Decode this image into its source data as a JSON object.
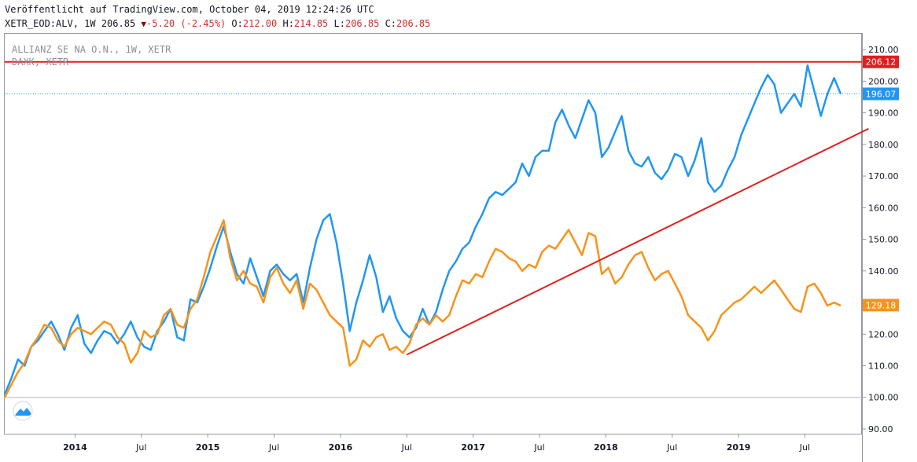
{
  "header": {
    "published": "Veröffentlicht auf TradingView.com, October 04, 2019 12:24:26 UTC",
    "symbol": "XETR_EOD:ALV, 1W 206.85",
    "change": "-5.20 (-2.45%)",
    "o_label": "O:",
    "o_val": "212.00",
    "h_label": "H:",
    "h_val": "214.85",
    "l_label": "L:",
    "l_val": "206.85",
    "c_label": "C:",
    "c_val": "206.85"
  },
  "legend": {
    "main": "ALLIANZ SE NA O.N., 1W, XETR",
    "compare": "DAXK, XETR"
  },
  "colors": {
    "allianz": "#2196f3",
    "daxk": "#f7931a",
    "trendline": "#e31e1e",
    "hline": "#e31e1e",
    "dotted": "#2196f3"
  },
  "chart_data": {
    "type": "line",
    "title": "",
    "xlabel": "",
    "ylabel": "",
    "ylim": [
      88,
      215
    ],
    "y_ticks": [
      "90.00",
      "100.00",
      "110.00",
      "120.00",
      "130.00",
      "140.00",
      "150.00",
      "160.00",
      "170.00",
      "180.00",
      "190.00",
      "200.00",
      "210.00"
    ],
    "x_ticks": [
      {
        "label": "2014",
        "t": 2014.0
      },
      {
        "label": "Jul",
        "t": 2014.5
      },
      {
        "label": "2015",
        "t": 2015.0
      },
      {
        "label": "Jul",
        "t": 2015.5
      },
      {
        "label": "2016",
        "t": 2016.0
      },
      {
        "label": "Jul",
        "t": 2016.5
      },
      {
        "label": "2017",
        "t": 2017.0
      },
      {
        "label": "Jul",
        "t": 2017.5
      },
      {
        "label": "2018",
        "t": 2018.0
      },
      {
        "label": "Jul",
        "t": 2018.5
      },
      {
        "label": "2019",
        "t": 2019.0
      },
      {
        "label": "Jul",
        "t": 2019.5
      }
    ],
    "series": [
      {
        "name": "ALLIANZ SE NA O.N., 1W, XETR",
        "last_label": "196.07",
        "x": [
          2013.47,
          2013.52,
          2013.57,
          2013.62,
          2013.67,
          2013.72,
          2013.77,
          2013.82,
          2013.87,
          2013.92,
          2013.97,
          2014.02,
          2014.07,
          2014.12,
          2014.17,
          2014.22,
          2014.27,
          2014.32,
          2014.37,
          2014.42,
          2014.47,
          2014.52,
          2014.57,
          2014.62,
          2014.67,
          2014.72,
          2014.77,
          2014.82,
          2014.87,
          2014.92,
          2014.97,
          2015.02,
          2015.07,
          2015.12,
          2015.17,
          2015.22,
          2015.27,
          2015.32,
          2015.37,
          2015.42,
          2015.47,
          2015.52,
          2015.57,
          2015.62,
          2015.67,
          2015.72,
          2015.77,
          2015.82,
          2015.87,
          2015.92,
          2015.97,
          2016.02,
          2016.07,
          2016.12,
          2016.17,
          2016.22,
          2016.27,
          2016.32,
          2016.37,
          2016.42,
          2016.47,
          2016.52,
          2016.57,
          2016.62,
          2016.67,
          2016.72,
          2016.77,
          2016.82,
          2016.87,
          2016.92,
          2016.97,
          2017.02,
          2017.07,
          2017.12,
          2017.17,
          2017.22,
          2017.27,
          2017.32,
          2017.37,
          2017.42,
          2017.47,
          2017.52,
          2017.57,
          2017.62,
          2017.67,
          2017.72,
          2017.77,
          2017.82,
          2017.87,
          2017.92,
          2017.97,
          2018.02,
          2018.07,
          2018.12,
          2018.17,
          2018.22,
          2018.27,
          2018.32,
          2018.37,
          2018.42,
          2018.47,
          2018.52,
          2018.57,
          2018.62,
          2018.67,
          2018.72,
          2018.77,
          2018.82,
          2018.87,
          2018.92,
          2018.97,
          2019.02,
          2019.07,
          2019.12,
          2019.17,
          2019.22,
          2019.27,
          2019.32,
          2019.37,
          2019.42,
          2019.47,
          2019.52,
          2019.57,
          2019.62,
          2019.67,
          2019.72,
          2019.77
        ],
        "values": [
          101,
          106,
          112,
          110,
          116,
          118,
          121,
          124,
          120,
          115,
          122,
          126,
          117,
          114,
          118,
          121,
          120,
          117,
          120,
          124,
          119,
          116,
          115,
          121,
          124,
          128,
          119,
          118,
          131,
          130,
          135,
          141,
          148,
          154,
          146,
          139,
          136,
          144,
          138,
          132,
          140,
          142,
          139,
          137,
          139,
          130,
          141,
          150,
          156,
          158,
          149,
          136,
          121,
          130,
          137,
          145,
          138,
          127,
          132,
          125,
          121,
          119,
          122,
          128,
          123,
          127,
          134,
          140,
          143,
          147,
          149,
          154,
          158,
          163,
          165,
          164,
          166,
          168,
          174,
          170,
          176,
          178,
          178,
          187,
          191,
          186,
          182,
          188,
          194,
          190,
          176,
          179,
          184,
          189,
          178,
          174,
          173,
          176,
          171,
          169,
          172,
          177,
          176,
          170,
          175,
          182,
          168,
          165,
          167,
          172,
          176,
          183,
          188,
          193,
          198,
          202,
          199,
          190,
          193,
          196,
          192,
          205,
          197,
          189,
          196,
          201,
          196
        ],
        "color": "#2196f3"
      },
      {
        "name": "DAXK, XETR",
        "last_label": "129.18",
        "x": [
          2013.47,
          2013.52,
          2013.57,
          2013.62,
          2013.67,
          2013.72,
          2013.77,
          2013.82,
          2013.87,
          2013.92,
          2013.97,
          2014.02,
          2014.07,
          2014.12,
          2014.17,
          2014.22,
          2014.27,
          2014.32,
          2014.37,
          2014.42,
          2014.47,
          2014.52,
          2014.57,
          2014.62,
          2014.67,
          2014.72,
          2014.77,
          2014.82,
          2014.87,
          2014.92,
          2014.97,
          2015.02,
          2015.07,
          2015.12,
          2015.17,
          2015.22,
          2015.27,
          2015.32,
          2015.37,
          2015.42,
          2015.47,
          2015.52,
          2015.57,
          2015.62,
          2015.67,
          2015.72,
          2015.77,
          2015.82,
          2015.87,
          2015.92,
          2015.97,
          2016.02,
          2016.07,
          2016.12,
          2016.17,
          2016.22,
          2016.27,
          2016.32,
          2016.37,
          2016.42,
          2016.47,
          2016.52,
          2016.57,
          2016.62,
          2016.67,
          2016.72,
          2016.77,
          2016.82,
          2016.87,
          2016.92,
          2016.97,
          2017.02,
          2017.07,
          2017.12,
          2017.17,
          2017.22,
          2017.27,
          2017.32,
          2017.37,
          2017.42,
          2017.47,
          2017.52,
          2017.57,
          2017.62,
          2017.67,
          2017.72,
          2017.77,
          2017.82,
          2017.87,
          2017.92,
          2017.97,
          2018.02,
          2018.07,
          2018.12,
          2018.17,
          2018.22,
          2018.27,
          2018.32,
          2018.37,
          2018.42,
          2018.47,
          2018.52,
          2018.57,
          2018.62,
          2018.67,
          2018.72,
          2018.77,
          2018.82,
          2018.87,
          2018.92,
          2018.97,
          2019.02,
          2019.07,
          2019.12,
          2019.17,
          2019.22,
          2019.27,
          2019.32,
          2019.37,
          2019.42,
          2019.47,
          2019.52,
          2019.57,
          2019.62,
          2019.67,
          2019.72,
          2019.77
        ],
        "values": [
          100,
          104,
          108,
          111,
          116,
          119,
          123,
          122,
          118,
          116,
          120,
          122,
          121,
          120,
          122,
          124,
          123,
          119,
          117,
          111,
          114,
          121,
          119,
          120,
          126,
          128,
          123,
          122,
          128,
          131,
          138,
          146,
          151,
          156,
          144,
          137,
          140,
          136,
          135,
          130,
          138,
          141,
          136,
          133,
          137,
          128,
          136,
          134,
          130,
          126,
          124,
          122,
          110,
          112,
          118,
          116,
          119,
          120,
          115,
          116,
          114,
          117,
          123,
          125,
          123,
          126,
          124,
          126,
          132,
          137,
          136,
          139,
          138,
          143,
          147,
          146,
          144,
          143,
          140,
          142,
          141,
          146,
          148,
          147,
          150,
          153,
          149,
          145,
          152,
          151,
          139,
          141,
          136,
          138,
          142,
          145,
          146,
          141,
          137,
          139,
          140,
          136,
          132,
          126,
          124,
          122,
          118,
          121,
          126,
          128,
          130,
          131,
          133,
          135,
          133,
          135,
          137,
          134,
          131,
          128,
          127,
          135,
          136,
          133,
          129,
          130,
          129
        ],
        "color": "#f7931a"
      }
    ],
    "annotations": [
      {
        "type": "hline",
        "value": 206.12,
        "label": "206.12",
        "color": "#e31e1e"
      },
      {
        "type": "trendline",
        "from": {
          "t": 2016.5,
          "v": 113.5
        },
        "to": {
          "t": 2019.98,
          "v": 185
        },
        "color": "#e31e1e"
      }
    ],
    "grid": true,
    "legend_position": "top-left"
  }
}
